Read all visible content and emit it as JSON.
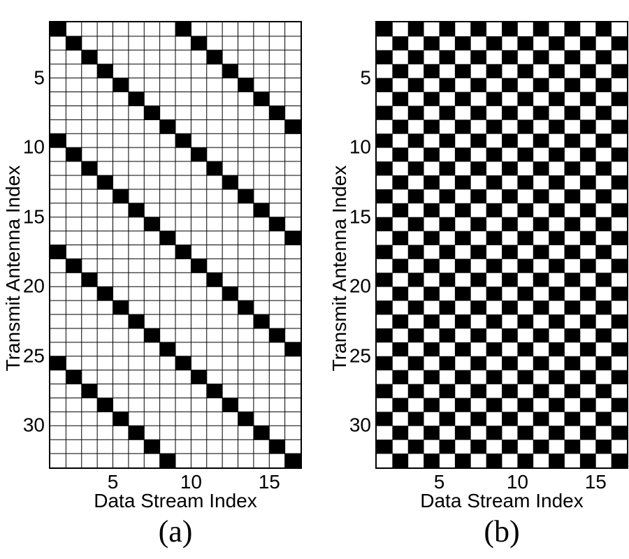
{
  "figure": {
    "background_color": "#ffffff",
    "text_color": "#000000",
    "panels": [
      "(a)",
      "(b)"
    ]
  },
  "chart_data": [
    {
      "type": "heatmap",
      "caption": "(a)",
      "title": "",
      "xlabel": "Data Stream Index",
      "ylabel": "Transmit Antenna Index",
      "n_cols": 16,
      "n_rows": 32,
      "x_range": [
        1,
        17
      ],
      "y_range": [
        1,
        33
      ],
      "xticks": [
        5,
        10,
        15
      ],
      "yticks": [
        5,
        10,
        15,
        20,
        25,
        30
      ],
      "grid_lines": true,
      "legend": "none",
      "colors": {
        "on": "#000000",
        "off": "#ffffff",
        "grid": "#000000"
      },
      "pattern_note": "black cell where (row-1) mod 8 == (col-1) mod 8",
      "rows": [
        "1000000010000000",
        "0100000001000000",
        "0010000000100000",
        "0001000000010000",
        "0000100000001000",
        "0000010000000100",
        "0000001000000010",
        "0000000100000001",
        "1000000010000000",
        "0100000001000000",
        "0010000000100000",
        "0001000000010000",
        "0000100000001000",
        "0000010000000100",
        "0000001000000010",
        "0000000100000001",
        "1000000010000000",
        "0100000001000000",
        "0010000000100000",
        "0001000000010000",
        "0000100000001000",
        "0000010000000100",
        "0000001000000010",
        "0000000100000001",
        "1000000010000000",
        "0100000001000000",
        "0010000000100000",
        "0001000000010000",
        "0000100000001000",
        "0000010000000100",
        "0000001000000010",
        "0000000100000001"
      ]
    },
    {
      "type": "heatmap",
      "caption": "(b)",
      "title": "",
      "xlabel": "Data Stream Index",
      "ylabel": "Transmit Antenna Index",
      "n_cols": 16,
      "n_rows": 32,
      "x_range": [
        1,
        17
      ],
      "y_range": [
        1,
        33
      ],
      "xticks": [
        5,
        10,
        15
      ],
      "yticks": [
        5,
        10,
        15,
        20,
        25,
        30
      ],
      "grid_lines": false,
      "legend": "none",
      "colors": {
        "on": "#000000",
        "off": "#ffffff",
        "grid": "#000000"
      },
      "pattern_note": "checkerboard, black cell where (row+col) is even",
      "rows": [
        "1010101010101010",
        "0101010101010101",
        "1010101010101010",
        "0101010101010101",
        "1010101010101010",
        "0101010101010101",
        "1010101010101010",
        "0101010101010101",
        "1010101010101010",
        "0101010101010101",
        "1010101010101010",
        "0101010101010101",
        "1010101010101010",
        "0101010101010101",
        "1010101010101010",
        "0101010101010101",
        "1010101010101010",
        "0101010101010101",
        "1010101010101010",
        "0101010101010101",
        "1010101010101010",
        "0101010101010101",
        "1010101010101010",
        "0101010101010101",
        "1010101010101010",
        "0101010101010101",
        "1010101010101010",
        "0101010101010101",
        "1010101010101010",
        "0101010101010101",
        "1010101010101010",
        "0101010101010101"
      ]
    }
  ]
}
